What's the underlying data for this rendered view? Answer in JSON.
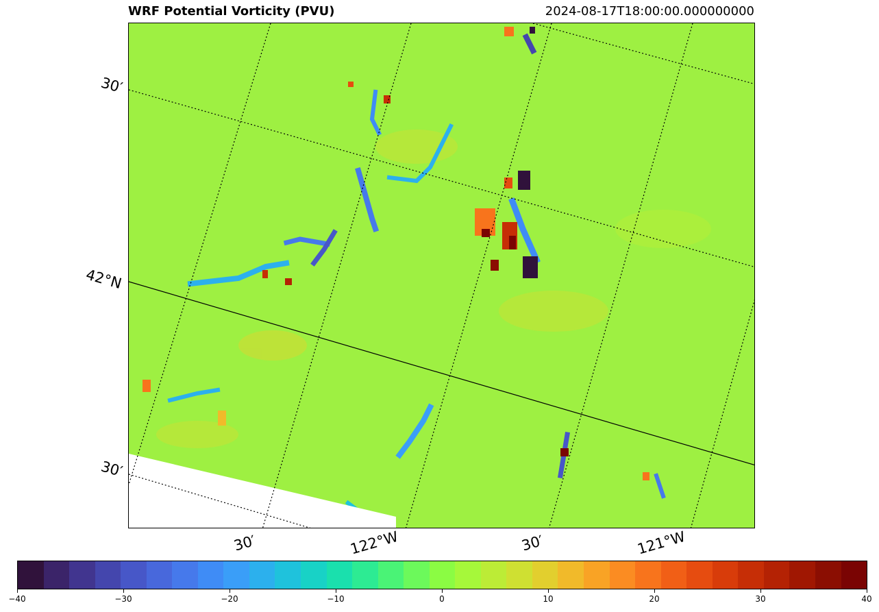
{
  "header": {
    "title": "WRF Potential Vorticity (PVU)",
    "timestamp": "2024-08-17T18:00:00.000000000"
  },
  "map": {
    "field": "potential vorticity",
    "background_color": "#9ef042",
    "no_data_color": "#ffffff",
    "lat_labels": [
      "30′",
      "42°N",
      "30′"
    ],
    "lon_labels": [
      "30′",
      "122°W",
      "30′",
      "121°W"
    ]
  },
  "colorbar": {
    "min": -40,
    "max": 40,
    "tick_labels": [
      "−40",
      "−30",
      "−20",
      "−10",
      "0",
      "10",
      "20",
      "30",
      "40"
    ],
    "colors": [
      "#30123b",
      "#3b2469",
      "#41358f",
      "#4446ad",
      "#4757c8",
      "#4868dc",
      "#4679eb",
      "#3f8cf6",
      "#3a9ef8",
      "#2cb0ed",
      "#1fc2dc",
      "#18d2c6",
      "#1ae0ad",
      "#2deb93",
      "#4af376",
      "#6cf95b",
      "#8bfc43",
      "#a6f83a",
      "#bcec36",
      "#cfe032",
      "#e2cf2e",
      "#f1ba2a",
      "#f9a325",
      "#fb8c22",
      "#f8741c",
      "#f15f16",
      "#e64c10",
      "#d83c0a",
      "#c62e06",
      "#b42204",
      "#a01702",
      "#8b0e02",
      "#7a0403"
    ]
  }
}
